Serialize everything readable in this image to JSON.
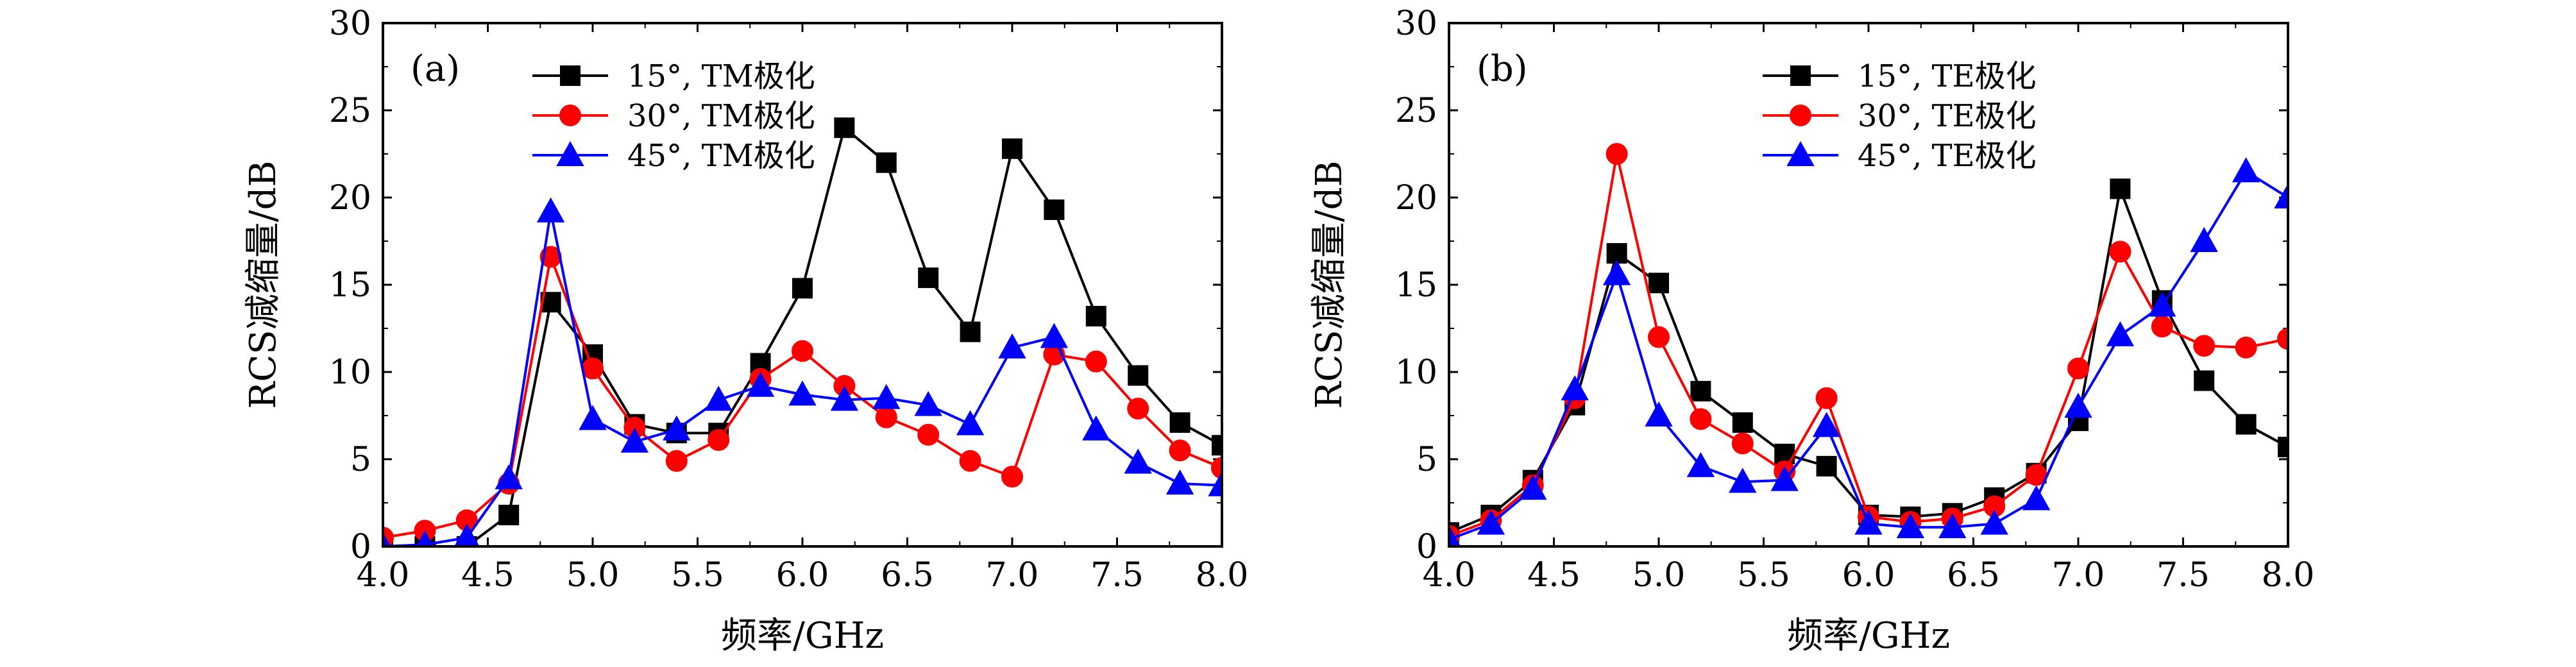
{
  "chart_data": [
    {
      "type": "line",
      "panel_label": "(a)",
      "xlabel": "频率/GHz",
      "ylabel": "RCS减缩量/dB",
      "xlim": [
        4.0,
        8.0
      ],
      "ylim": [
        0,
        30
      ],
      "x_ticks": [
        "4.0",
        "4.5",
        "5.0",
        "5.5",
        "6.0",
        "6.5",
        "7.0",
        "7.5",
        "8.0"
      ],
      "y_ticks": [
        "0",
        "5",
        "10",
        "15",
        "20",
        "25",
        "30"
      ],
      "legend_position": "top-center",
      "x": [
        4.0,
        4.2,
        4.4,
        4.6,
        4.8,
        5.0,
        5.2,
        5.4,
        5.6,
        5.8,
        6.0,
        6.2,
        6.4,
        6.6,
        6.8,
        7.0,
        7.2,
        7.4,
        7.6,
        7.8,
        8.0
      ],
      "series": [
        {
          "name": "15°, TM极化",
          "color": "#000000",
          "marker": "square",
          "values": [
            0.0,
            0.0,
            0.0,
            1.8,
            14.0,
            11.0,
            7.0,
            6.5,
            6.5,
            10.5,
            14.8,
            24.0,
            22.0,
            15.4,
            12.3,
            22.8,
            19.3,
            13.2,
            9.8,
            7.1,
            5.8
          ]
        },
        {
          "name": "30°, TM极化",
          "color": "#ff0000",
          "marker": "circle",
          "values": [
            0.5,
            0.9,
            1.5,
            3.6,
            16.6,
            10.2,
            6.8,
            4.9,
            6.1,
            9.6,
            11.2,
            9.2,
            7.4,
            6.4,
            4.9,
            4.0,
            11.0,
            10.6,
            7.9,
            5.5,
            4.5
          ]
        },
        {
          "name": "45°, TM极化",
          "color": "#0000ff",
          "marker": "triangle",
          "values": [
            0.0,
            0.1,
            0.5,
            3.9,
            19.2,
            7.3,
            6.0,
            6.7,
            8.4,
            9.2,
            8.7,
            8.4,
            8.5,
            8.1,
            7.0,
            11.4,
            12.0,
            6.7,
            4.8,
            3.6,
            3.5
          ]
        }
      ]
    },
    {
      "type": "line",
      "panel_label": "(b)",
      "xlabel": "频率/GHz",
      "ylabel": "RCS减缩量/dB",
      "xlim": [
        4.0,
        8.0
      ],
      "ylim": [
        0,
        30
      ],
      "x_ticks": [
        "4.0",
        "4.5",
        "5.0",
        "5.5",
        "6.0",
        "6.5",
        "7.0",
        "7.5",
        "8.0"
      ],
      "y_ticks": [
        "0",
        "5",
        "10",
        "15",
        "20",
        "25",
        "30"
      ],
      "legend_position": "top-center",
      "x": [
        4.0,
        4.2,
        4.4,
        4.6,
        4.8,
        5.0,
        5.2,
        5.4,
        5.6,
        5.8,
        6.0,
        6.2,
        6.4,
        6.6,
        6.8,
        7.0,
        7.2,
        7.4,
        7.6,
        7.8,
        8.0
      ],
      "series": [
        {
          "name": "15°, TE极化",
          "color": "#000000",
          "marker": "square",
          "values": [
            0.8,
            1.8,
            3.8,
            8.1,
            16.8,
            15.1,
            8.9,
            7.1,
            5.3,
            4.6,
            1.8,
            1.7,
            1.9,
            2.8,
            4.2,
            7.2,
            20.5,
            14.1,
            9.5,
            7.0,
            5.7
          ]
        },
        {
          "name": "30°, TE极化",
          "color": "#ff0000",
          "marker": "circle",
          "values": [
            0.6,
            1.5,
            3.5,
            8.5,
            22.5,
            12.0,
            7.3,
            5.9,
            4.3,
            8.5,
            1.7,
            1.4,
            1.6,
            2.3,
            4.1,
            10.2,
            16.9,
            12.6,
            11.5,
            11.4,
            11.9
          ]
        },
        {
          "name": "45°, TE极化",
          "color": "#0000ff",
          "marker": "triangle",
          "values": [
            0.4,
            1.3,
            3.3,
            9.0,
            15.6,
            7.5,
            4.6,
            3.7,
            3.8,
            6.9,
            1.3,
            1.1,
            1.1,
            1.3,
            2.7,
            8.0,
            12.1,
            13.8,
            17.5,
            21.5,
            20.0
          ]
        }
      ]
    }
  ]
}
